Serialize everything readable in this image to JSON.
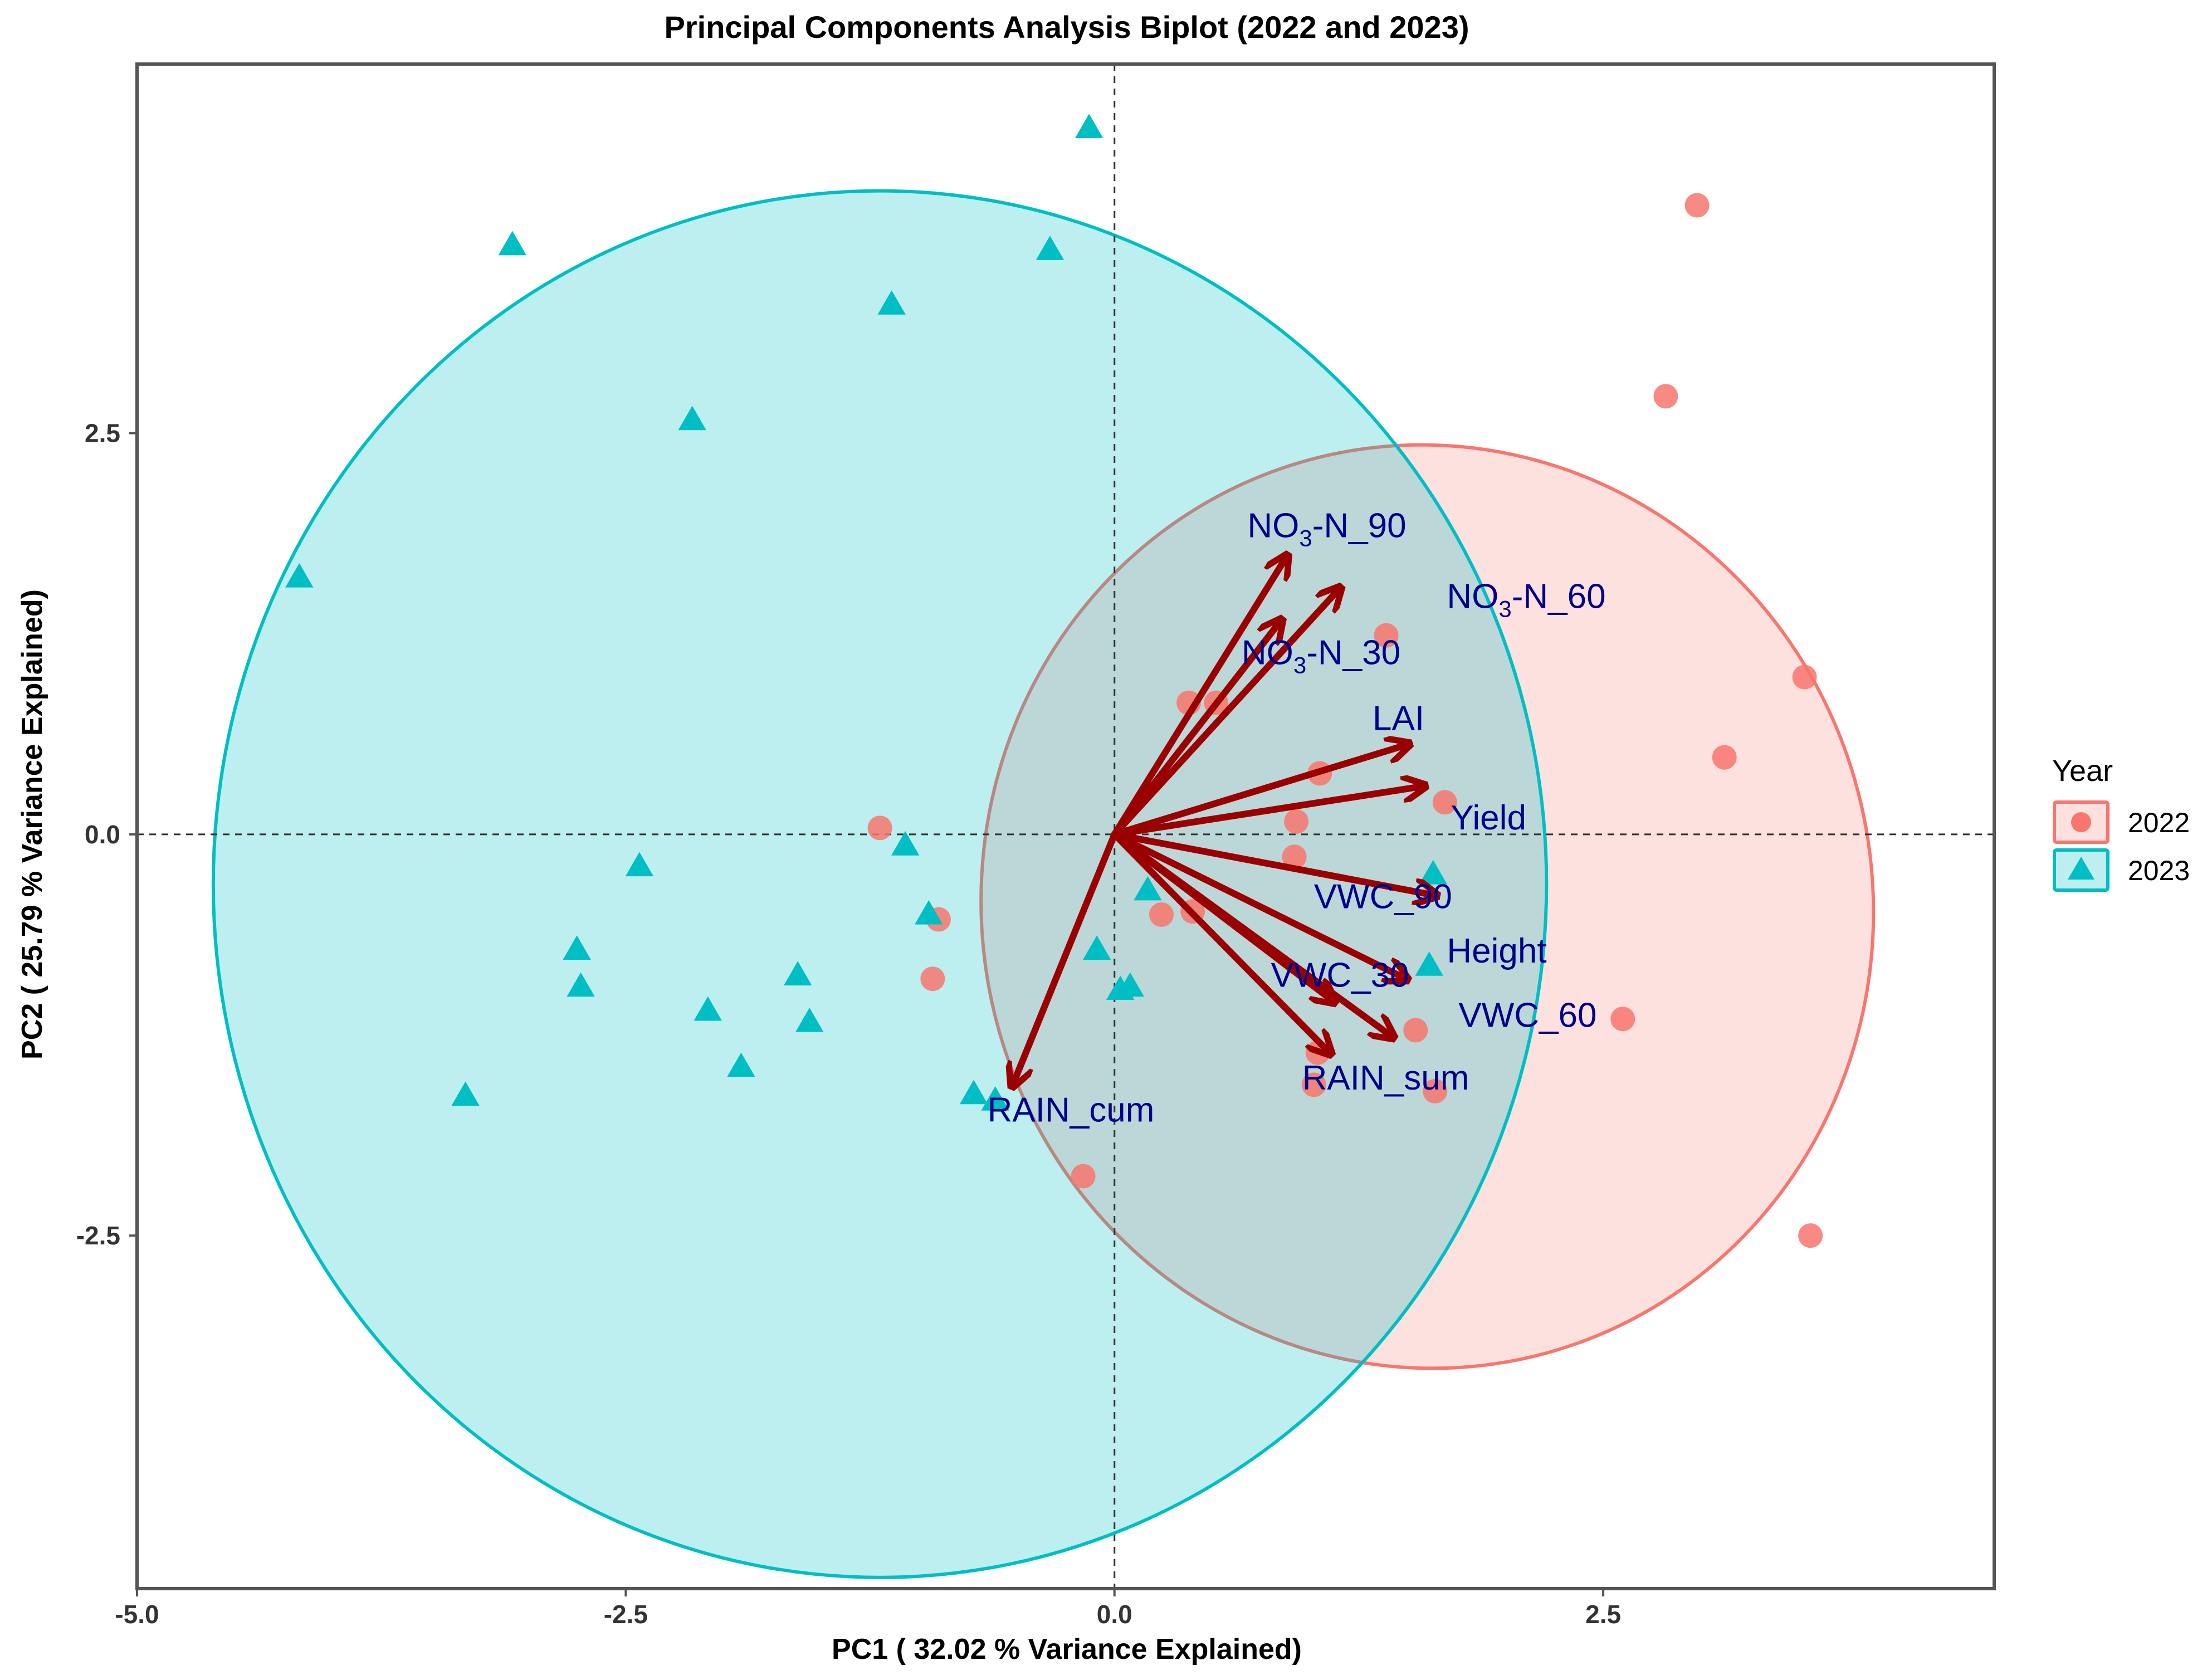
{
  "chart_data": {
    "type": "scatter",
    "title": "Principal Components Analysis Biplot (2022 and 2023)",
    "xlabel": "PC1 ( 32.02 % Variance Explained)",
    "ylabel": "PC2 ( 25.79 % Variance Explained)",
    "xlim": [
      -5.0,
      4.5
    ],
    "ylim": [
      -4.7,
      4.8
    ],
    "xticks": [
      -5.0,
      -2.5,
      0.0,
      2.5
    ],
    "xtick_labels": [
      "-5.0",
      "-2.5",
      "0.0",
      "2.5"
    ],
    "yticks": [
      -2.5,
      0.0,
      2.5
    ],
    "ytick_labels": [
      "-2.5",
      "0.0",
      "2.5"
    ],
    "grid": false,
    "reference_lines": [
      "x = 0 dashed",
      "y = 0 dashed"
    ],
    "legend": {
      "title": "Year",
      "position": "right",
      "entries": [
        {
          "label": "2022",
          "color": "#F8766D",
          "shape": "circle"
        },
        {
          "label": "2023",
          "color": "#00BFC4",
          "shape": "triangle"
        }
      ]
    },
    "series": [
      {
        "name": "2022",
        "color": "#F8766D",
        "shape": "circle",
        "points": [
          [
            2.98,
            3.92
          ],
          [
            2.82,
            2.73
          ],
          [
            3.53,
            0.98
          ],
          [
            3.12,
            0.48
          ],
          [
            1.39,
            1.24
          ],
          [
            0.38,
            0.82
          ],
          [
            0.52,
            0.82
          ],
          [
            1.05,
            0.38
          ],
          [
            1.69,
            0.2
          ],
          [
            0.93,
            0.08
          ],
          [
            0.92,
            -0.14
          ],
          [
            -1.2,
            0.04
          ],
          [
            -0.9,
            -0.53
          ],
          [
            -0.93,
            -0.9
          ],
          [
            0.24,
            -0.5
          ],
          [
            0.4,
            -0.48
          ],
          [
            1.04,
            -1.36
          ],
          [
            1.02,
            -1.56
          ],
          [
            1.54,
            -1.22
          ],
          [
            1.64,
            -1.6
          ],
          [
            2.6,
            -1.15
          ],
          [
            3.56,
            -2.5
          ],
          [
            -0.16,
            -2.13
          ]
        ]
      },
      {
        "name": "2023",
        "color": "#00BFC4",
        "shape": "triangle",
        "points": [
          [
            -0.13,
            4.4
          ],
          [
            -3.08,
            3.67
          ],
          [
            -0.33,
            3.64
          ],
          [
            -1.14,
            3.3
          ],
          [
            -2.16,
            2.58
          ],
          [
            -4.17,
            1.6
          ],
          [
            -2.43,
            -0.2
          ],
          [
            -1.07,
            -0.07
          ],
          [
            -2.75,
            -0.72
          ],
          [
            -2.73,
            -0.95
          ],
          [
            -2.08,
            -1.1
          ],
          [
            -1.62,
            -0.88
          ],
          [
            -1.56,
            -1.17
          ],
          [
            -1.91,
            -1.45
          ],
          [
            -0.95,
            -0.5
          ],
          [
            -3.32,
            -1.63
          ],
          [
            -0.72,
            -1.62
          ],
          [
            -0.61,
            -1.66
          ],
          [
            0.17,
            -0.35
          ],
          [
            -0.09,
            -0.72
          ],
          [
            0.03,
            -0.97
          ],
          [
            0.08,
            -0.95
          ],
          [
            1.63,
            -0.25
          ],
          [
            1.61,
            -0.82
          ]
        ]
      }
    ],
    "ellipses": [
      {
        "group": "2022",
        "center": [
          1.6,
          -0.45
        ],
        "rx": 2.28,
        "ry": 2.88,
        "rotation_deg": 10
      },
      {
        "group": "2023",
        "center": [
          -1.2,
          -0.31
        ],
        "rx": 3.41,
        "ry": 4.32,
        "rotation_deg": 0
      }
    ],
    "loadings": [
      {
        "label": "NO₃-N_90",
        "x": 0.88,
        "y": 1.73,
        "label_at": [
          0.68,
          1.92
        ]
      },
      {
        "label": "NO₃-N_60",
        "x": 1.15,
        "y": 1.53,
        "label_at": [
          1.7,
          1.48
        ]
      },
      {
        "label": "NO₃-N_30",
        "x": 0.85,
        "y": 1.33,
        "label_at": [
          0.65,
          1.13
        ]
      },
      {
        "label": "LAI",
        "x": 1.5,
        "y": 0.56,
        "label_at": [
          1.32,
          0.72
        ]
      },
      {
        "label": "Yield",
        "x": 1.58,
        "y": 0.3,
        "label_at": [
          1.72,
          0.1
        ]
      },
      {
        "label": "VWC_90",
        "x": 1.64,
        "y": -0.38,
        "label_at": [
          1.02,
          -0.39
        ]
      },
      {
        "label": "Height",
        "x": 1.49,
        "y": -0.9,
        "label_at": [
          1.7,
          -0.73
        ]
      },
      {
        "label": "VWC_30",
        "x": 1.12,
        "y": -1.04,
        "label_at": [
          0.8,
          -0.88
        ]
      },
      {
        "label": "VWC_60",
        "x": 1.42,
        "y": -1.26,
        "label_at": [
          1.76,
          -1.13
        ]
      },
      {
        "label": "RAIN_sum",
        "x": 1.1,
        "y": -1.36,
        "label_at": [
          0.96,
          -1.52
        ]
      },
      {
        "label": "RAIN_cum",
        "x": -0.52,
        "y": -1.56,
        "label_at": [
          -0.65,
          -1.72
        ]
      }
    ]
  }
}
